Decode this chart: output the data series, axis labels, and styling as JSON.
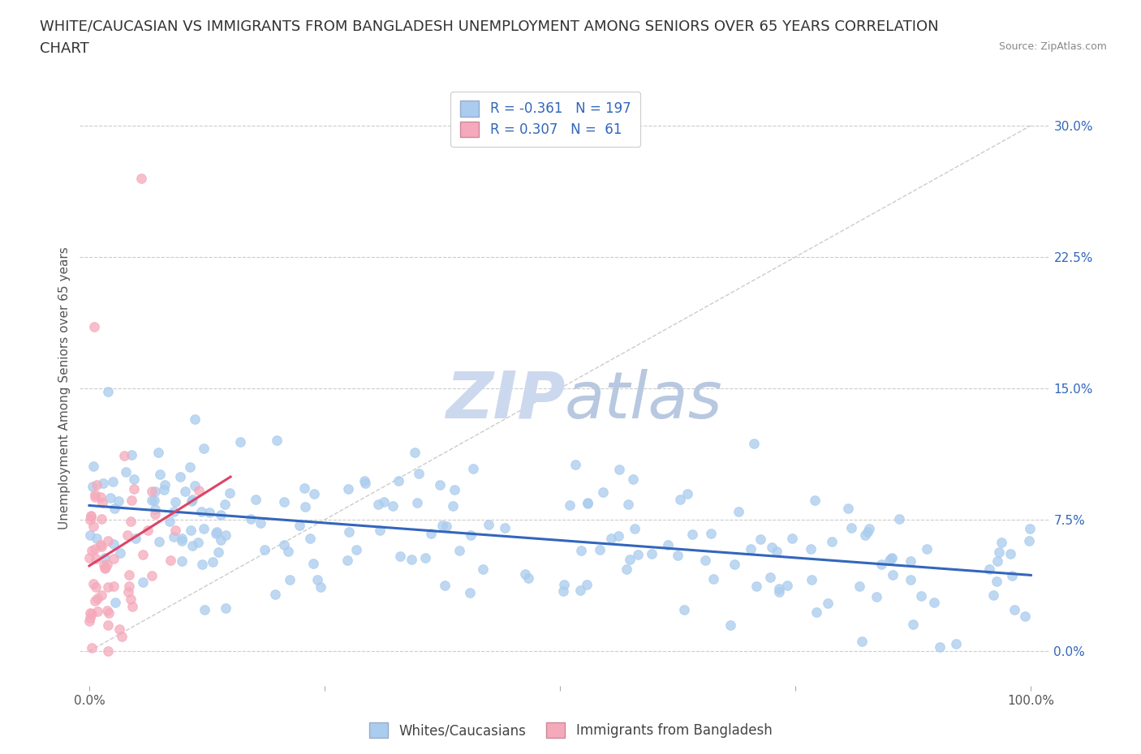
{
  "title_line1": "WHITE/CAUCASIAN VS IMMIGRANTS FROM BANGLADESH UNEMPLOYMENT AMONG SENIORS OVER 65 YEARS CORRELATION",
  "title_line2": "CHART",
  "source_text": "Source: ZipAtlas.com",
  "ylabel": "Unemployment Among Seniors over 65 years",
  "xmin": 0.0,
  "xmax": 1.0,
  "ymin": -0.02,
  "ymax": 0.32,
  "yticks": [
    0.0,
    0.075,
    0.15,
    0.225,
    0.3
  ],
  "ytick_labels": [
    "0.0%",
    "7.5%",
    "15.0%",
    "22.5%",
    "30.0%"
  ],
  "xticks": [
    0.0,
    0.25,
    0.5,
    0.75,
    1.0
  ],
  "xtick_labels": [
    "0.0%",
    "",
    "",
    "",
    "100.0%"
  ],
  "blue_R": -0.361,
  "blue_N": 197,
  "pink_R": 0.307,
  "pink_N": 61,
  "legend_label_blue": "Whites/Caucasians",
  "legend_label_pink": "Immigrants from Bangladesh",
  "scatter_color_blue": "#aaccee",
  "scatter_color_pink": "#f5aabb",
  "line_color_blue": "#3366bb",
  "line_color_pink": "#dd4466",
  "diagonal_color": "#cccccc",
  "watermark_color": "#dde8f5",
  "background_color": "#ffffff",
  "title_fontsize": 13,
  "axis_label_fontsize": 11,
  "tick_label_fontsize": 11,
  "legend_fontsize": 12
}
